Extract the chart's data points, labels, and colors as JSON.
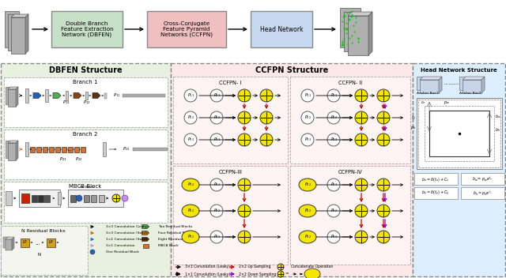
{
  "bg_color": "#ffffff",
  "dbfen_bg": "#e8f0e0",
  "ccfpn_bg": "#fce8e8",
  "head_bg": "#ddeeff",
  "yellow": "#f5e600",
  "green_block": "#4caf50",
  "orange_block": "#e07020",
  "brown_block": "#8b4513",
  "darkbrown_block": "#5c3010",
  "blue_block": "#2060c0",
  "red_arrow": "#cc0000",
  "purple_arrow": "#8800cc",
  "gray_block": "#aaaaaa",
  "gold_block": "#d4a017",
  "top_dbfen_color": "#c8dfc8",
  "top_ccfpn_color": "#f0c0c0",
  "top_head_color": "#c8d8f0",
  "ccfpn_subtitles": [
    "CCFPN- I",
    "CCFPN- II",
    "CCFPN-III",
    "CCFPN-IV"
  ]
}
